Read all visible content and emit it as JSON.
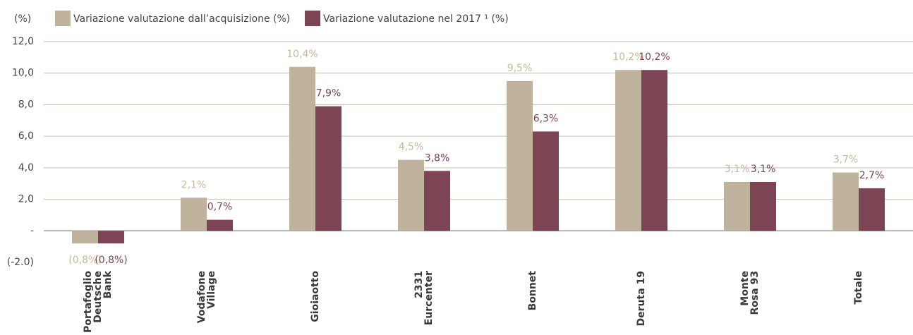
{
  "chart_data": {
    "type": "bar",
    "y_unit": "(%)",
    "categories": [
      [
        "Portafoglio",
        "Deutsche",
        "Bank"
      ],
      [
        "Vodafone",
        "Village"
      ],
      [
        "Gioiaotto"
      ],
      [
        "2331",
        "Eurcenter"
      ],
      [
        "Bonnet"
      ],
      [
        "Deruta 19"
      ],
      [
        "Monte",
        "Rosa 93"
      ],
      [
        "Totale"
      ]
    ],
    "series": [
      {
        "name": "Variazione valutazione dall’acquisizione (%)",
        "color": "#bfb39e",
        "label_color": "#c9b99b",
        "values": [
          -0.8,
          2.1,
          10.4,
          4.5,
          9.5,
          10.2,
          3.1,
          3.7
        ],
        "value_labels": [
          "(0,8%)",
          "2,1%",
          "10,4%",
          "4,5%",
          "9,5%",
          "10,2%",
          "3,1%",
          "3,7%"
        ]
      },
      {
        "name": "Variazione valutazione nel 2017 ¹ (%)",
        "color": "#7d4454",
        "label_color": "#7d4454",
        "values": [
          -0.8,
          0.7,
          7.9,
          3.8,
          6.3,
          10.2,
          3.1,
          2.7
        ],
        "value_labels": [
          "(0,8%)",
          "0,7%",
          "7,9%",
          "3,8%",
          "6,3%",
          "10,2%",
          "3,1%",
          "2,7%"
        ]
      }
    ],
    "ylim": [
      -2,
      12
    ],
    "yticks": [
      {
        "value": 12,
        "label": "12,0"
      },
      {
        "value": 10,
        "label": "10,0"
      },
      {
        "value": 8,
        "label": "8,0"
      },
      {
        "value": 6,
        "label": "6,0"
      },
      {
        "value": 4,
        "label": "4,0"
      },
      {
        "value": 2,
        "label": "2,0"
      },
      {
        "value": 0,
        "label": "-"
      },
      {
        "value": -2,
        "label": "(-2.0)"
      }
    ],
    "grid": true
  }
}
